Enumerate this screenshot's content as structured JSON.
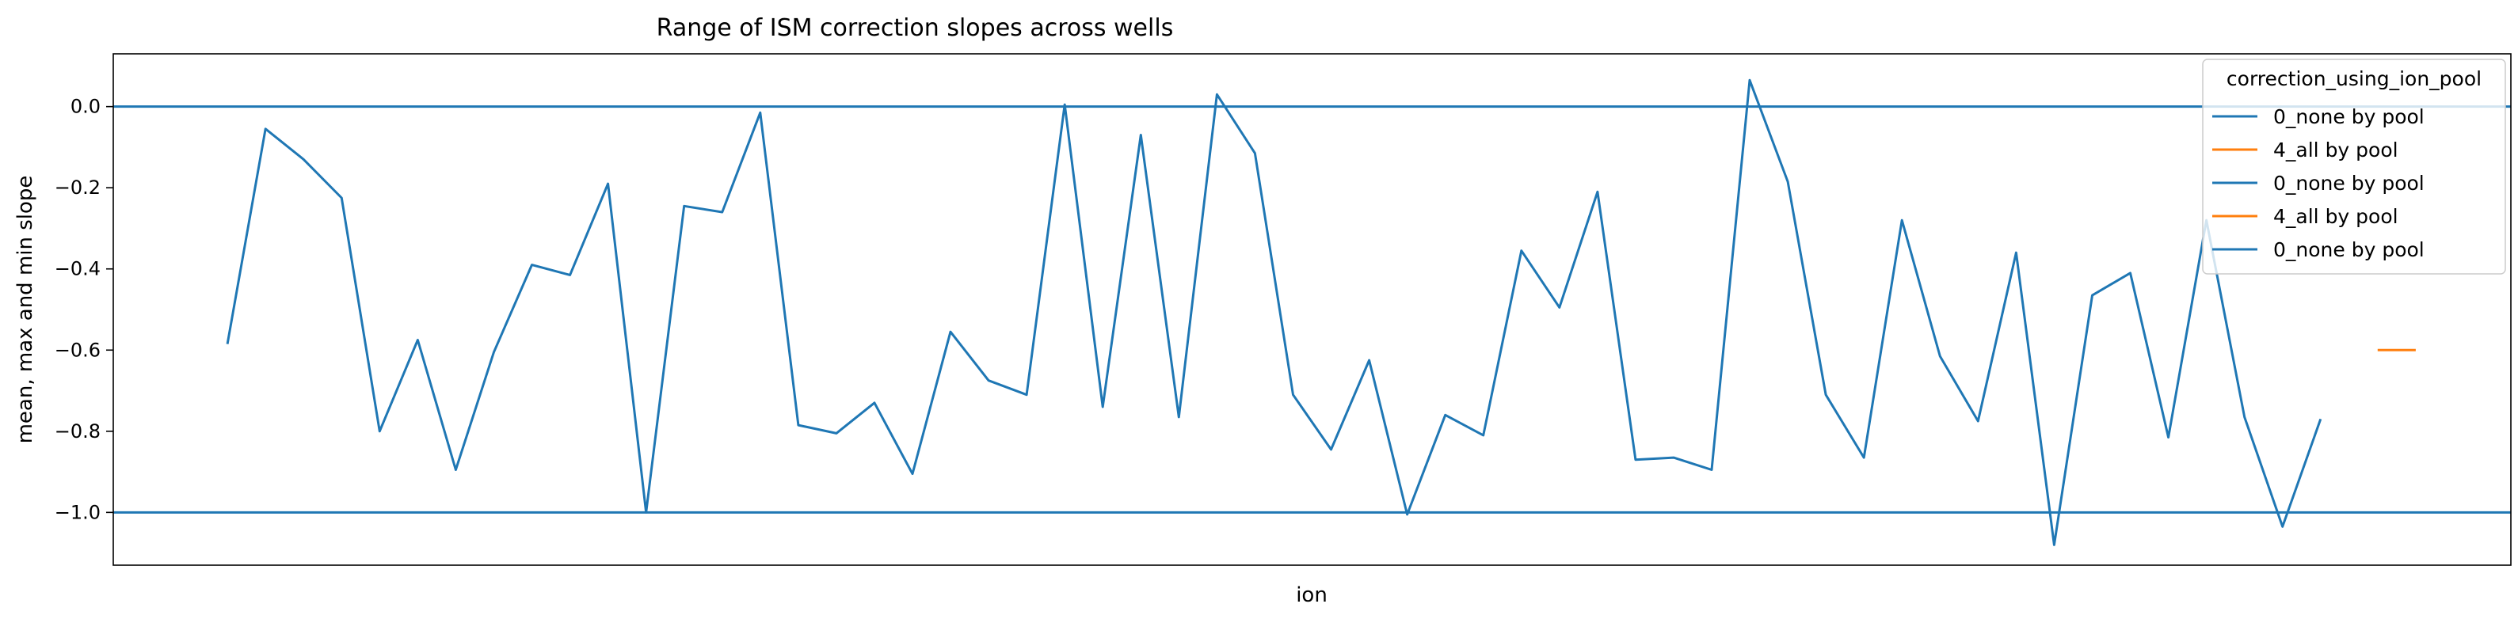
{
  "chart_data": {
    "type": "line",
    "title": "Range of ISM correction slopes across wells",
    "xlabel": "ion",
    "ylabel": "mean, max and min slope",
    "ylim": [
      -1.13,
      0.13
    ],
    "yticks": [
      0.0,
      -0.2,
      -0.4,
      -0.6,
      -0.8,
      -1.0
    ],
    "ytick_labels": [
      "0.0",
      "−0.2",
      "−0.4",
      "−0.6",
      "−0.8",
      "−1.0"
    ],
    "xlim": [
      -3,
      60
    ],
    "grid": false,
    "hlines": [
      {
        "name": "upper-reference",
        "y": 0.0,
        "color": "#1f77b4"
      },
      {
        "name": "lower-reference",
        "y": -1.0,
        "color": "#1f77b4"
      }
    ],
    "series": [
      {
        "name": "0_none by pool",
        "color": "#1f77b4",
        "x": [
          0,
          1,
          2,
          3,
          4,
          5,
          6,
          7,
          8,
          9,
          10,
          11,
          12,
          13,
          14,
          15,
          16,
          17,
          18,
          19,
          20,
          21,
          22,
          23,
          24,
          25,
          26,
          27,
          28,
          29,
          30,
          31,
          32,
          33,
          34,
          35,
          36,
          37,
          38,
          39,
          40,
          41,
          42,
          43,
          44,
          45,
          46,
          47,
          48,
          49,
          50,
          51,
          52,
          53,
          54,
          55,
          56
        ],
        "values": [
          -0.585,
          -0.055,
          -0.13,
          -0.225,
          -0.8,
          -0.575,
          -0.895,
          -0.605,
          -0.39,
          -0.415,
          -0.19,
          -1.0,
          -0.245,
          -0.26,
          -0.015,
          -0.785,
          -0.805,
          -0.73,
          -0.905,
          -0.555,
          -0.675,
          -0.71,
          0.005,
          -0.74,
          -0.07,
          -0.765,
          0.03,
          -0.115,
          -0.71,
          -0.845,
          -0.625,
          -1.005,
          -0.76,
          -0.81,
          -0.355,
          -0.495,
          -0.21,
          -0.87,
          -0.865,
          -0.895,
          0.065,
          -0.185,
          -0.71,
          -0.865,
          -0.28,
          -0.615,
          -0.775,
          -0.36,
          -1.08,
          -0.465,
          -0.41,
          -0.815,
          -0.28,
          -0.765,
          -1.035,
          -0.77,
          null
        ]
      },
      {
        "name": "4_all by pool",
        "color": "#ff7f0e",
        "x": [
          56.5,
          57.5
        ],
        "values": [
          -0.6,
          -0.6
        ]
      }
    ],
    "legend": {
      "title": "correction_using_ion_pool",
      "position": "top-right",
      "entries": [
        {
          "label": "0_none by pool",
          "color": "#1f77b4"
        },
        {
          "label": "4_all by pool",
          "color": "#ff7f0e"
        },
        {
          "label": "0_none by pool",
          "color": "#1f77b4"
        },
        {
          "label": "4_all by pool",
          "color": "#ff7f0e"
        },
        {
          "label": "0_none by pool",
          "color": "#1f77b4"
        }
      ]
    }
  }
}
